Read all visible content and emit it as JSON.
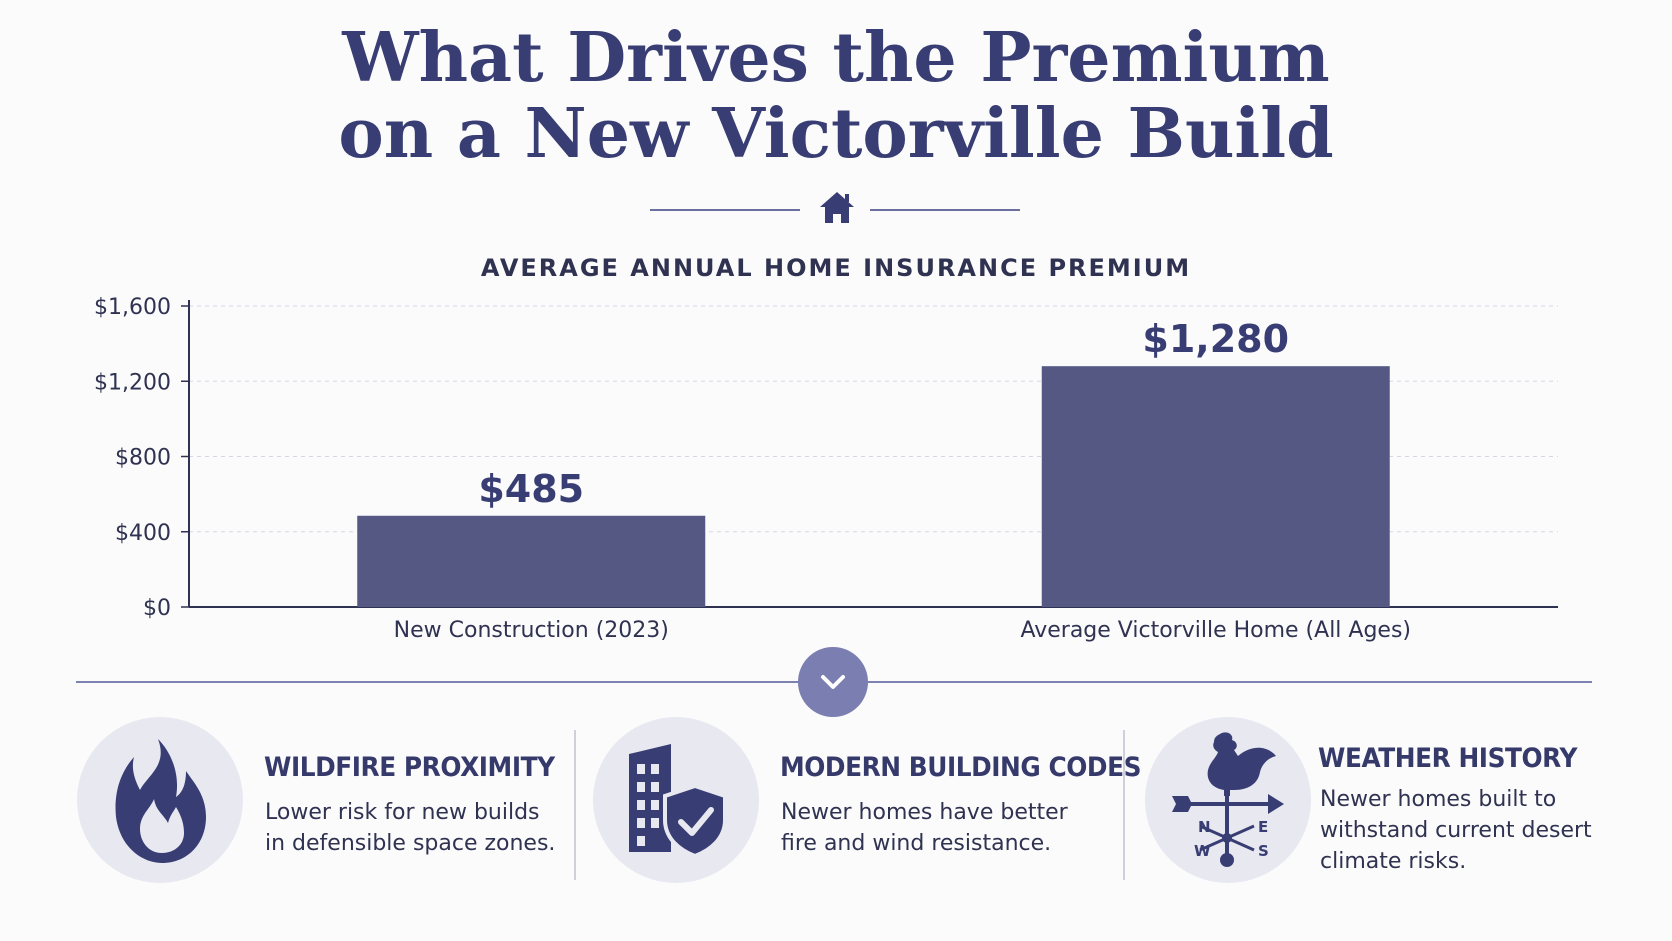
{
  "header": {
    "title_line1": "What Drives the Premium",
    "title_line2": "on a New Victorville Build"
  },
  "icons": {
    "divider": "house-icon",
    "separator": "chevron-down-icon"
  },
  "colors": {
    "accent": "#383d73",
    "bar": "#555883",
    "icon_bg": "#e8e8f1",
    "chevron_bg": "#7b7eb0"
  },
  "chart_data": {
    "type": "bar",
    "title": "AVERAGE ANNUAL HOME INSURANCE PREMIUM",
    "categories": [
      "New Construction (2023)",
      "Average Victorville Home (All Ages)"
    ],
    "values": [
      485,
      1280
    ],
    "value_labels": [
      "$485",
      "$1,280"
    ],
    "ylim": [
      0,
      1600
    ],
    "yticks": [
      0,
      400,
      800,
      1200,
      1600
    ],
    "ytick_labels": [
      "$0",
      "$400",
      "$800",
      "$1,200",
      "$1,600"
    ],
    "xlabel": "",
    "ylabel": "",
    "grid": true
  },
  "features": [
    {
      "icon": "flame-icon",
      "title": "WILDFIRE PROXIMITY",
      "description": "Lower risk for new builds\nin defensible space zones."
    },
    {
      "icon": "building-shield-icon",
      "title": "MODERN BUILDING CODES",
      "description": "Newer homes have better\nfire and wind resistance."
    },
    {
      "icon": "weather-vane-icon",
      "title": "WEATHER HISTORY",
      "description": "Newer homes built to\nwithstand current desert\nclimate risks.",
      "compass": [
        "N",
        "E",
        "W",
        "S"
      ]
    }
  ]
}
